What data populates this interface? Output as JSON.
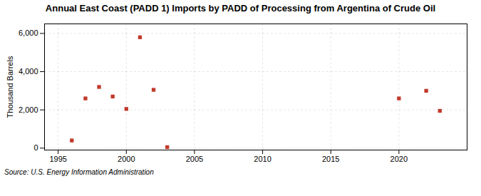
{
  "chart_data": {
    "type": "scatter",
    "title": "Annual East Coast (PADD 1) Imports by PADD of Processing from Argentina of Crude Oil",
    "ylabel": "Thousand Barrels",
    "source": "Source: U.S. Energy Information Administration",
    "x": [
      1996,
      1997,
      1998,
      1999,
      2000,
      2001,
      2002,
      2003,
      2020,
      2022,
      2023
    ],
    "values": [
      400,
      2600,
      3200,
      2700,
      2050,
      5800,
      3050,
      50,
      2600,
      3000,
      1950
    ],
    "color": "#c0392b",
    "marker": "square",
    "xlim": [
      1994.0,
      2025.0
    ],
    "ylim": [
      -100,
      6500
    ],
    "xticks": [
      1995,
      2000,
      2005,
      2010,
      2015,
      2020
    ],
    "yticks": [
      0,
      {
        "value": 2000,
        "label": "2,000"
      },
      {
        "value": 4000,
        "label": "4,000"
      },
      {
        "value": 6000,
        "label": "6,000"
      }
    ],
    "grid": true
  }
}
